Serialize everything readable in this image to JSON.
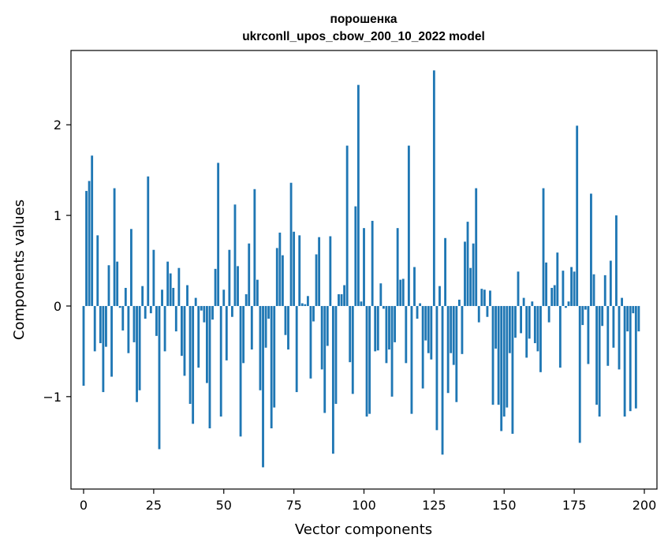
{
  "chart_data": {
    "type": "bar",
    "title_line1": "порошенка",
    "title_line2": "ukrconll_upos_cbow_200_10_2022 model",
    "xlabel": "Vector components",
    "ylabel": "Components values",
    "xlim": [
      -4.5,
      204.5
    ],
    "ylim": [
      -2.02,
      2.82
    ],
    "x_ticks": [
      0,
      25,
      50,
      75,
      100,
      125,
      150,
      175,
      200
    ],
    "x_tick_labels": [
      "0",
      "25",
      "50",
      "75",
      "100",
      "125",
      "150",
      "175",
      "200"
    ],
    "y_ticks": [
      -1,
      0,
      1,
      2
    ],
    "y_tick_labels": [
      "−1",
      "0",
      "1",
      "2"
    ],
    "bar_color": "#1f77b4",
    "values": [
      -0.88,
      1.27,
      1.38,
      1.66,
      -0.5,
      0.78,
      -0.41,
      -0.95,
      -0.45,
      0.45,
      -0.78,
      1.3,
      0.49,
      -0.02,
      -0.27,
      0.2,
      -0.52,
      0.85,
      -0.4,
      -1.06,
      -0.93,
      0.22,
      -0.14,
      1.43,
      -0.08,
      0.62,
      -0.33,
      -1.58,
      0.18,
      -0.5,
      0.49,
      0.36,
      0.2,
      -0.28,
      0.42,
      -0.55,
      -0.77,
      0.23,
      -1.08,
      -1.3,
      0.09,
      -0.68,
      -0.05,
      -0.18,
      -0.85,
      -1.35,
      -0.15,
      0.41,
      1.58,
      -1.22,
      0.18,
      -0.6,
      0.62,
      -0.12,
      1.12,
      0.44,
      -1.44,
      -0.63,
      0.13,
      0.69,
      -0.48,
      1.29,
      0.29,
      -0.93,
      -1.78,
      -0.46,
      -0.14,
      -1.35,
      -1.12,
      0.64,
      0.81,
      0.56,
      -0.32,
      -0.48,
      1.36,
      0.82,
      -0.95,
      0.78,
      0.03,
      0.02,
      0.11,
      -0.8,
      -0.17,
      0.57,
      0.76,
      -0.7,
      -1.18,
      -0.44,
      0.77,
      -1.63,
      -1.08,
      0.13,
      0.13,
      0.23,
      1.77,
      -0.62,
      -0.97,
      1.1,
      2.44,
      0.05,
      0.86,
      -1.22,
      -1.19,
      0.94,
      -0.5,
      -0.49,
      0.25,
      -0.03,
      -0.63,
      -0.48,
      -1.0,
      -0.4,
      0.86,
      0.29,
      0.3,
      -0.63,
      1.77,
      -1.19,
      0.43,
      -0.14,
      0.03,
      -0.91,
      -0.38,
      -0.52,
      -0.59,
      2.6,
      -1.37,
      0.22,
      -1.64,
      0.75,
      -0.96,
      -0.52,
      -0.65,
      -1.06,
      0.07,
      -0.53,
      0.71,
      0.93,
      0.42,
      0.69,
      1.3,
      -0.18,
      0.19,
      0.18,
      -0.12,
      0.17,
      -1.09,
      -0.47,
      -1.09,
      -1.38,
      -1.22,
      -1.12,
      -0.52,
      -1.41,
      -0.35,
      0.38,
      -0.3,
      0.09,
      -0.57,
      -0.36,
      0.05,
      -0.41,
      -0.5,
      -0.73,
      1.3,
      0.48,
      -0.18,
      0.2,
      0.23,
      0.59,
      -0.68,
      0.39,
      -0.02,
      0.05,
      0.43,
      0.38,
      1.99,
      -1.51,
      -0.21,
      -0.04,
      -0.64,
      1.24,
      0.35,
      -1.09,
      -1.22,
      -0.22,
      0.34,
      -0.66,
      0.5,
      -0.46,
      1.0,
      -0.7,
      0.09,
      -1.22,
      -0.28,
      -1.16,
      -0.08,
      -1.13,
      -0.28
    ]
  }
}
